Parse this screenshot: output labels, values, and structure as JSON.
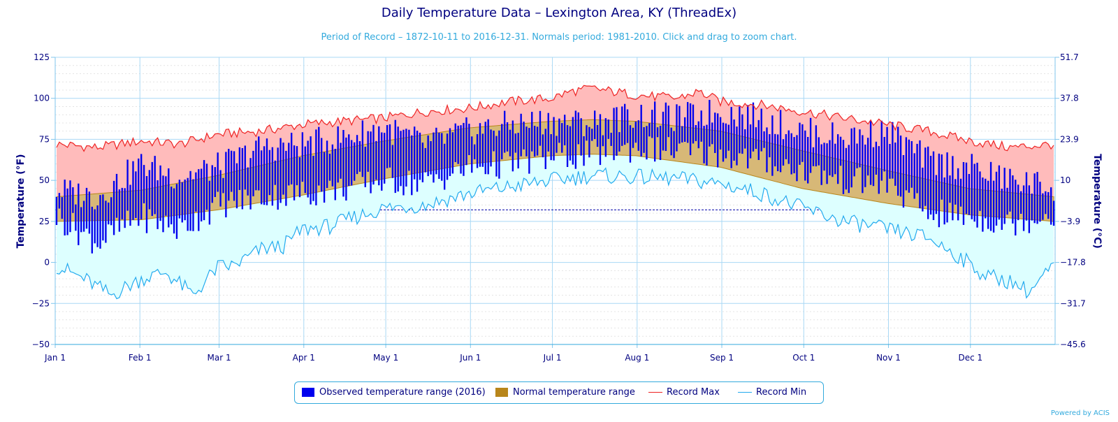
{
  "chart_data": {
    "type": "area",
    "title": "Daily Temperature Data – Lexington Area, KY (ThreadEx)",
    "subtitle": "Period of Record – 1872-10-11 to 2016-12-31. Normals period: 1981-2010. Click and drag to zoom chart.",
    "ylabel": "Temperature (°F)",
    "ylabel_right": "Temperature (°C)",
    "ylim": [
      -50,
      125
    ],
    "yticks": [
      "125",
      "100",
      "75",
      "50",
      "25",
      "0",
      "−25",
      "−50"
    ],
    "yticks_right": [
      "51.7",
      "37.8",
      "23.9",
      "10",
      "−3.9",
      "−17.8",
      "−31.7",
      "−45.6"
    ],
    "xticks": [
      "Jan 1",
      "Feb 1",
      "Mar 1",
      "Apr 1",
      "May 1",
      "Jun 1",
      "Jul 1",
      "Aug 1",
      "Sep 1",
      "Oct 1",
      "Nov 1",
      "Dec 1"
    ],
    "xtick_days": [
      0,
      31,
      60,
      91,
      121,
      152,
      182,
      213,
      244,
      274,
      305,
      335
    ],
    "freezing_line": 32,
    "grid": true,
    "legend_position": "bottom",
    "colors": {
      "observed": "#0000ee",
      "normal": "#b8861b",
      "record_max": "#ee2222",
      "record_min": "#22aaee",
      "record_max_fill": "#ffbbbb",
      "record_min_fill": "#ddffff",
      "normal_fill": "#d7b877"
    },
    "series": [
      {
        "name": "Observed temperature range (2016)",
        "days": [
          0,
          15,
          31,
          45,
          59,
          75,
          90,
          105,
          120,
          135,
          151,
          166,
          181,
          196,
          212,
          227,
          243,
          258,
          273,
          288,
          304,
          319,
          334,
          349,
          365
        ],
        "high": [
          44,
          40,
          60,
          52,
          58,
          70,
          72,
          76,
          82,
          72,
          80,
          84,
          86,
          85,
          90,
          88,
          92,
          88,
          80,
          76,
          80,
          62,
          58,
          50,
          46
        ],
        "low": [
          28,
          12,
          28,
          20,
          35,
          40,
          42,
          45,
          50,
          48,
          58,
          60,
          64,
          66,
          70,
          68,
          66,
          62,
          56,
          50,
          48,
          30,
          28,
          24,
          30
        ]
      },
      {
        "name": "Normal temperature range",
        "days": [
          0,
          31,
          59,
          90,
          120,
          151,
          181,
          196,
          212,
          243,
          273,
          304,
          334,
          365
        ],
        "high": [
          40,
          44,
          53,
          65,
          74,
          82,
          86,
          87,
          86,
          80,
          68,
          56,
          45,
          40
        ],
        "low": [
          25,
          26,
          32,
          41,
          51,
          60,
          65,
          66,
          65,
          58,
          45,
          36,
          29,
          25
        ]
      },
      {
        "name": "Record Max",
        "days": [
          0,
          15,
          31,
          45,
          59,
          75,
          90,
          105,
          120,
          135,
          151,
          166,
          181,
          188,
          196,
          212,
          227,
          235,
          243,
          258,
          273,
          288,
          304,
          319,
          334,
          349,
          365
        ],
        "values": [
          72,
          70,
          74,
          72,
          78,
          80,
          84,
          86,
          88,
          92,
          94,
          98,
          100,
          104,
          106,
          102,
          100,
          104,
          98,
          96,
          92,
          88,
          84,
          80,
          74,
          70,
          72
        ]
      },
      {
        "name": "Record Min",
        "days": [
          0,
          10,
          20,
          31,
          40,
          50,
          59,
          65,
          75,
          83,
          90,
          100,
          110,
          120,
          135,
          151,
          166,
          181,
          196,
          212,
          227,
          243,
          258,
          273,
          288,
          304,
          319,
          330,
          340,
          350,
          356,
          365
        ],
        "values": [
          -2,
          -10,
          -20,
          -10,
          -6,
          -20,
          -3,
          -2,
          8,
          10,
          20,
          22,
          28,
          33,
          35,
          42,
          46,
          50,
          53,
          52,
          51,
          48,
          42,
          33,
          25,
          20,
          15,
          4,
          -8,
          -12,
          -18,
          -2
        ]
      }
    ]
  },
  "legend": {
    "observed": "Observed temperature range (2016)",
    "normal": "Normal temperature range",
    "record_max": "Record Max",
    "record_min": "Record Min"
  },
  "footer": "Powered by ACIS"
}
